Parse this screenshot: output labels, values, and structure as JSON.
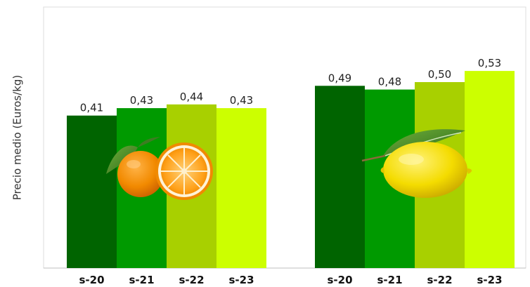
{
  "chart_data": {
    "type": "bar",
    "title": "",
    "xlabel": "",
    "ylabel": "Precio medio (Euros/kg)",
    "ylim": [
      0,
      0.6
    ],
    "grid": false,
    "groups": [
      {
        "icon": "orange-icon",
        "bars": [
          {
            "label": "s-20",
            "value": 0.41,
            "value_label": "0,41",
            "color": "#006400"
          },
          {
            "label": "s-21",
            "value": 0.43,
            "value_label": "0,43",
            "color": "#009a00"
          },
          {
            "label": "s-22",
            "value": 0.44,
            "value_label": "0,44",
            "color": "#a8d000"
          },
          {
            "label": "s-23",
            "value": 0.43,
            "value_label": "0,43",
            "color": "#ccff00"
          }
        ]
      },
      {
        "icon": "lemon-icon",
        "bars": [
          {
            "label": "s-20",
            "value": 0.49,
            "value_label": "0,49",
            "color": "#006400"
          },
          {
            "label": "s-21",
            "value": 0.48,
            "value_label": "0,48",
            "color": "#009a00"
          },
          {
            "label": "s-22",
            "value": 0.5,
            "value_label": "0,50",
            "color": "#a8d000"
          },
          {
            "label": "s-23",
            "value": 0.53,
            "value_label": "0,53",
            "color": "#ccff00"
          }
        ]
      }
    ]
  }
}
